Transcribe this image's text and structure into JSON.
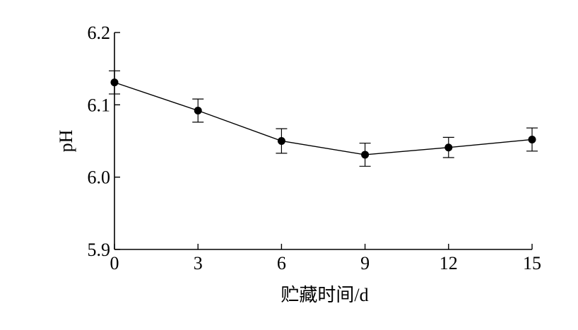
{
  "chart_data": {
    "type": "line",
    "xlabel": "贮藏时间/d",
    "ylabel": "pH",
    "xlim": [
      0,
      15
    ],
    "ylim": [
      5.9,
      6.2
    ],
    "x_ticks": [
      0,
      3,
      6,
      9,
      12,
      15
    ],
    "y_ticks": [
      5.9,
      6.0,
      6.1,
      6.2
    ],
    "y_tick_labels": [
      "5.9",
      "6.0",
      "6.1",
      "6.2"
    ],
    "grid": false,
    "series": [
      {
        "x": [
          0,
          3,
          6,
          9,
          12,
          15
        ],
        "y": [
          6.131,
          6.092,
          6.05,
          6.031,
          6.041,
          6.052
        ],
        "error": [
          0.016,
          0.016,
          0.017,
          0.016,
          0.014,
          0.016
        ],
        "color": "#000000",
        "marker": "filled-circle"
      }
    ]
  }
}
